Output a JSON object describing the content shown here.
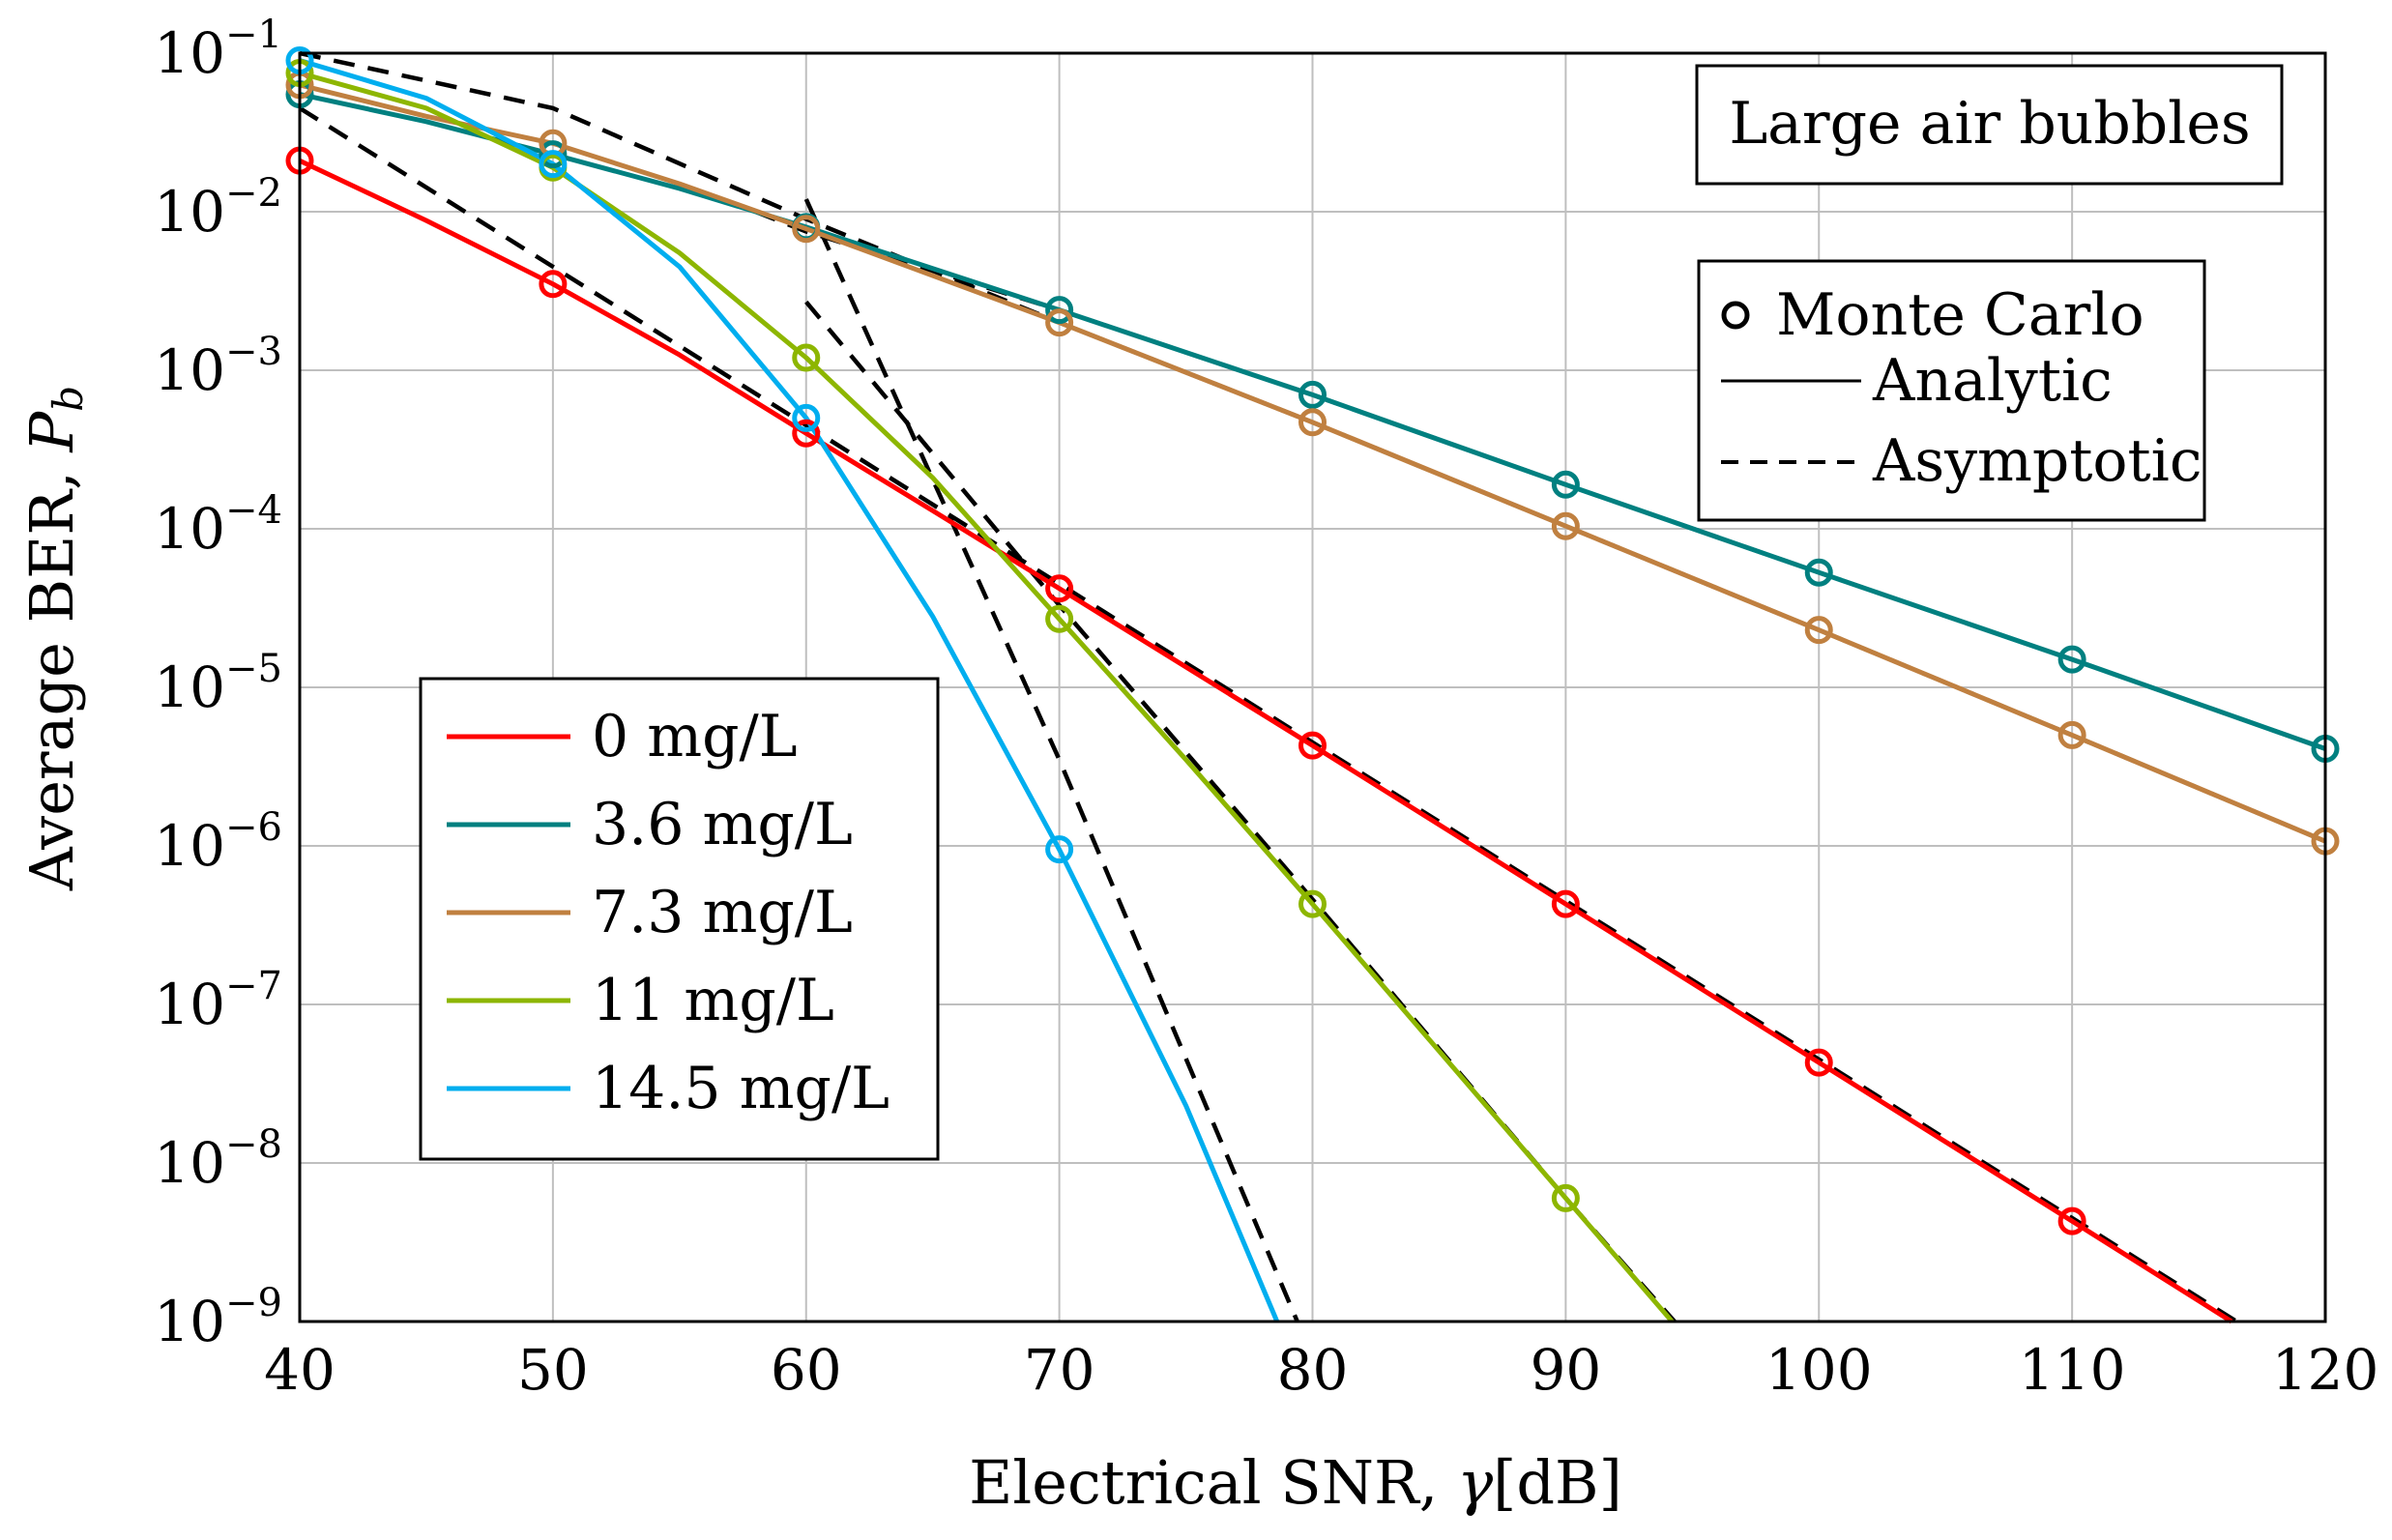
{
  "chart_data": {
    "type": "line",
    "title": "",
    "xlabel_main": "Electrical SNR, ",
    "xlabel_sym": "γ",
    "xlabel_unit": "[dB]",
    "ylabel_main": "Average BER, ",
    "ylabel_sym": "P",
    "ylabel_sub": "b",
    "xlim": [
      40,
      120
    ],
    "ylim_log10": [
      -9,
      -1
    ],
    "yscale": "log",
    "grid": true,
    "x_ticks": [
      40,
      50,
      60,
      70,
      80,
      90,
      100,
      110,
      120
    ],
    "x_tick_labels": [
      "40",
      "50",
      "60",
      "70",
      "80",
      "90",
      "100",
      "110",
      "120"
    ],
    "y_tick_exponents": [
      -1,
      -2,
      -3,
      -4,
      -5,
      -6,
      -7,
      -8,
      -9
    ],
    "y_tick_base": "10",
    "y_tick_exp_labels": [
      "−1",
      "−2",
      "−3",
      "−4",
      "−5",
      "−6",
      "−7",
      "−8",
      "−9"
    ],
    "annotation": "Large air bubbles",
    "legend_location": "center-left",
    "style_legend_location": "right",
    "style_legend": [
      {
        "label": "Monte Carlo",
        "style": "circle"
      },
      {
        "label": "Analytic",
        "style": "solid"
      },
      {
        "label": "Asymptotic",
        "style": "dashed"
      }
    ],
    "series": [
      {
        "name": "0 mg/L",
        "color": "#ff0000",
        "analytic": [
          [
            40,
            0.021
          ],
          [
            45,
            0.0088
          ],
          [
            50,
            0.0035
          ],
          [
            55,
            0.00125
          ],
          [
            60,
            0.0004
          ],
          [
            65,
            0.00013
          ],
          [
            70,
            4.2e-05
          ],
          [
            80,
            4.3e-06
          ],
          [
            90,
            4.3e-07
          ],
          [
            100,
            4.3e-08
          ],
          [
            110,
            4.3e-09
          ],
          [
            116.3,
            1e-09
          ]
        ],
        "monte_carlo": [
          [
            40,
            0.021
          ],
          [
            50,
            0.0035
          ],
          [
            60,
            0.0004
          ],
          [
            70,
            4.2e-05
          ],
          [
            80,
            4.3e-06
          ],
          [
            90,
            4.3e-07
          ],
          [
            100,
            4.3e-08
          ],
          [
            110,
            4.3e-09
          ]
        ],
        "asymptotic": [
          [
            40,
            0.045
          ],
          [
            50,
            0.0045
          ],
          [
            60,
            0.00045
          ],
          [
            70,
            4.5e-05
          ],
          [
            80,
            4.5e-06
          ],
          [
            90,
            4.5e-07
          ],
          [
            100,
            4.5e-08
          ],
          [
            110,
            4.5e-09
          ],
          [
            116.5,
            1e-09
          ]
        ]
      },
      {
        "name": "3.6 mg/L",
        "color": "#008080",
        "analytic": [
          [
            40,
            0.055
          ],
          [
            45,
            0.037
          ],
          [
            50,
            0.023
          ],
          [
            55,
            0.014
          ],
          [
            60,
            0.008
          ],
          [
            70,
            0.0024
          ],
          [
            80,
            0.0007
          ],
          [
            90,
            0.00019
          ],
          [
            100,
            5.3e-05
          ],
          [
            110,
            1.5e-05
          ],
          [
            120,
            4.1e-06
          ]
        ],
        "monte_carlo": [
          [
            40,
            0.055
          ],
          [
            50,
            0.023
          ],
          [
            60,
            0.008
          ],
          [
            70,
            0.0024
          ],
          [
            80,
            0.0007
          ],
          [
            90,
            0.00019
          ],
          [
            100,
            5.3e-05
          ],
          [
            110,
            1.5e-05
          ],
          [
            120,
            4.1e-06
          ]
        ],
        "asymptotic": [
          [
            58,
            0.01
          ],
          [
            60,
            0.0075
          ],
          [
            70,
            0.0024
          ],
          [
            80,
            0.0007
          ],
          [
            90,
            0.00019
          ],
          [
            100,
            5.3e-05
          ],
          [
            110,
            1.5e-05
          ],
          [
            120,
            4.1e-06
          ]
        ]
      },
      {
        "name": "7.3 mg/L",
        "color": "#c08040",
        "analytic": [
          [
            40,
            0.063
          ],
          [
            45,
            0.04
          ],
          [
            50,
            0.027
          ],
          [
            55,
            0.015
          ],
          [
            60,
            0.0078
          ],
          [
            70,
            0.002
          ],
          [
            80,
            0.00047
          ],
          [
            90,
            0.000104
          ],
          [
            100,
            2.3e-05
          ],
          [
            110,
            5e-06
          ],
          [
            120,
            1.07e-06
          ]
        ],
        "monte_carlo": [
          [
            40,
            0.063
          ],
          [
            50,
            0.027
          ],
          [
            60,
            0.0078
          ],
          [
            70,
            0.002
          ],
          [
            80,
            0.00047
          ],
          [
            90,
            0.000104
          ],
          [
            100,
            2.3e-05
          ],
          [
            110,
            5e-06
          ],
          [
            120,
            1.07e-06
          ]
        ],
        "asymptotic": [
          [
            40,
            0.1
          ],
          [
            50,
            0.045
          ],
          [
            60,
            0.009
          ],
          [
            70,
            0.002
          ],
          [
            80,
            0.00047
          ],
          [
            90,
            0.000104
          ],
          [
            100,
            2.3e-05
          ],
          [
            110,
            5e-06
          ],
          [
            120,
            1.07e-06
          ]
        ]
      },
      {
        "name": "11 mg/L",
        "color": "#8db600",
        "analytic": [
          [
            40,
            0.075
          ],
          [
            45,
            0.045
          ],
          [
            50,
            0.019
          ],
          [
            55,
            0.0055
          ],
          [
            60,
            0.0012
          ],
          [
            65,
            0.00021
          ],
          [
            70,
            2.7e-05
          ],
          [
            75,
            3.5e-06
          ],
          [
            80,
            4.3e-07
          ],
          [
            90,
            6e-09
          ],
          [
            94.2,
            1e-09
          ]
        ],
        "monte_carlo": [
          [
            40,
            0.075
          ],
          [
            50,
            0.019
          ],
          [
            60,
            0.0012
          ],
          [
            70,
            2.7e-05
          ],
          [
            80,
            4.3e-07
          ],
          [
            90,
            6e-09
          ]
        ],
        "asymptotic": [
          [
            60,
            0.0027
          ],
          [
            70,
            3.3e-05
          ],
          [
            80,
            4.6e-07
          ],
          [
            90,
            6e-09
          ],
          [
            94.3,
            1e-09
          ]
        ]
      },
      {
        "name": "14.5 mg/L",
        "color": "#00aeef",
        "analytic": [
          [
            40,
            0.09
          ],
          [
            45,
            0.052
          ],
          [
            50,
            0.02
          ],
          [
            55,
            0.0045
          ],
          [
            60,
            0.0005
          ],
          [
            65,
            2.8e-05
          ],
          [
            70,
            9.5e-07
          ],
          [
            75,
            2.3e-08
          ],
          [
            78.6,
            1e-09
          ]
        ],
        "monte_carlo": [
          [
            40,
            0.09
          ],
          [
            50,
            0.02
          ],
          [
            60,
            0.0005
          ],
          [
            70,
            9.5e-07
          ]
        ],
        "asymptotic": [
          [
            60,
            0.012
          ],
          [
            70,
            3.5e-06
          ],
          [
            79.4,
            1e-09
          ]
        ]
      }
    ]
  }
}
